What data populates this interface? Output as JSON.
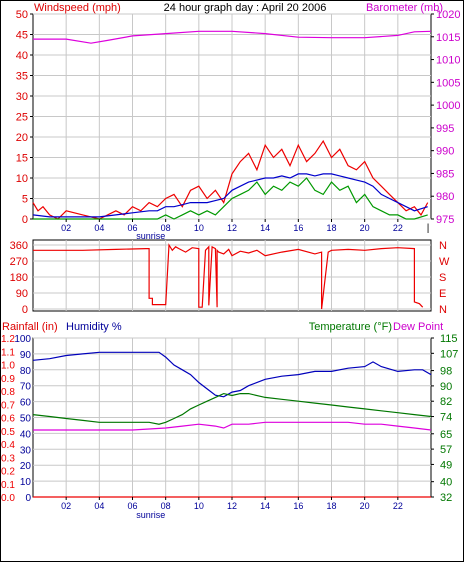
{
  "header": {
    "title": "24 hour graph day : April 20 2006",
    "left_label": "Windspeed (mph)",
    "right_label": "Barometer (mb)"
  },
  "x_axis": {
    "tick_labels": [
      "02",
      "04",
      "06",
      "08",
      "10",
      "12",
      "14",
      "16",
      "18",
      "20",
      "22"
    ],
    "hours": [
      2,
      4,
      6,
      8,
      10,
      12,
      14,
      16,
      18,
      20,
      22
    ],
    "sunrise_label": "sunrise",
    "sunrise_hour": 7.1,
    "end_marker": "|"
  },
  "colors": {
    "wind_axis": "#dd0000",
    "baro_axis": "#cc00cc",
    "humidity_axis": "#000099",
    "temp_axis": "#007700",
    "wind_speed": "#ee0000",
    "wind_avg": "#0000cc",
    "wind_green": "#009900",
    "barometer": "#dd00dd",
    "direction": "#ee0000",
    "humidity": "#0000bb",
    "temperature": "#007700",
    "dew_point": "#dd00dd",
    "rainfall": "#ee0000",
    "grid": "#c8c8c8"
  },
  "chart_data": [
    {
      "type": "line",
      "panel": "wind",
      "ylabel_left": "Windspeed (mph)",
      "ylabel_right": "Barometer (mb)",
      "xlim": [
        0,
        24
      ],
      "ylim_left": [
        0,
        50
      ],
      "ylim_right": [
        975,
        1020
      ],
      "left_ticks": [
        0,
        5,
        10,
        15,
        20,
        25,
        30,
        35,
        40,
        45,
        50
      ],
      "right_ticks": [
        975,
        980,
        985,
        990,
        995,
        1000,
        1005,
        1010,
        1015,
        1020
      ],
      "series": [
        {
          "axis": "left",
          "color": "#ee0000",
          "x": [
            0,
            0.3,
            0.6,
            1,
            1.5,
            2,
            3,
            4,
            4.5,
            5,
            5.5,
            6,
            6.5,
            7,
            7.5,
            8,
            8.5,
            9,
            9.5,
            10,
            10.5,
            11,
            11.5,
            12,
            12.5,
            13,
            13.5,
            14,
            14.5,
            15,
            15.5,
            16,
            16.5,
            17,
            17.5,
            18,
            18.5,
            19,
            19.5,
            20,
            20.5,
            21,
            21.5,
            22,
            22.5,
            23,
            23.4,
            23.8
          ],
          "y": [
            4,
            2,
            3,
            1,
            0,
            2,
            1,
            0,
            1,
            2,
            1,
            3,
            2,
            4,
            3,
            5,
            6,
            3,
            7,
            8,
            5,
            7,
            4,
            11,
            14,
            16,
            12,
            18,
            15,
            17,
            13,
            18,
            14,
            16,
            19,
            15,
            17,
            13,
            12,
            14,
            10,
            8,
            6,
            4,
            2,
            3,
            1,
            4
          ]
        },
        {
          "axis": "left",
          "color": "#0000cc",
          "x": [
            0,
            1,
            2,
            3,
            4,
            5,
            6,
            7,
            7.5,
            8,
            8.5,
            9,
            9.5,
            10,
            10.5,
            11,
            11.5,
            12,
            12.5,
            13,
            13.5,
            14,
            14.5,
            15,
            15.5,
            16,
            16.5,
            17,
            17.5,
            18,
            18.5,
            19,
            19.5,
            20,
            20.5,
            21,
            21.5,
            22,
            22.5,
            23,
            23.8
          ],
          "y": [
            1,
            0.5,
            0.5,
            0.5,
            0.5,
            1,
            1.5,
            2,
            2,
            3,
            3,
            3.5,
            4,
            4,
            4,
            4.5,
            5,
            7,
            8,
            9,
            9.5,
            10,
            10,
            10.5,
            10,
            11,
            11,
            10.5,
            11,
            11,
            10.5,
            10,
            9.5,
            9,
            8,
            6,
            5,
            4,
            3,
            2,
            3
          ]
        },
        {
          "axis": "left",
          "color": "#009900",
          "x": [
            0,
            1,
            2,
            3,
            4,
            5,
            6,
            7,
            7.5,
            8,
            8.5,
            9,
            9.5,
            10,
            10.5,
            11,
            11.5,
            12,
            12.5,
            13,
            13.5,
            14,
            14.5,
            15,
            15.5,
            16,
            16.5,
            17,
            17.5,
            18,
            18.5,
            19,
            19.5,
            20,
            20.5,
            21,
            21.5,
            22,
            22.5,
            23,
            23.8
          ],
          "y": [
            0,
            0,
            0,
            0,
            0,
            0,
            0,
            0,
            0,
            1,
            0,
            1,
            2,
            1,
            2,
            1,
            3,
            5,
            6,
            7,
            9,
            6,
            8,
            7,
            9,
            8,
            10,
            7,
            6,
            9,
            7,
            8,
            4,
            6,
            3,
            2,
            1,
            1,
            0,
            0,
            1
          ]
        },
        {
          "axis": "right",
          "color": "#dd00dd",
          "x": [
            0,
            2,
            3.5,
            4.5,
            6,
            8,
            10,
            12,
            14,
            16,
            18,
            20,
            22,
            23,
            24
          ],
          "y": [
            1014.5,
            1014.5,
            1013.6,
            1014.2,
            1015.2,
            1015.7,
            1016.2,
            1016.2,
            1015.7,
            1014.9,
            1014.8,
            1014.8,
            1015.3,
            1016.1,
            1016.2
          ]
        }
      ]
    },
    {
      "type": "line",
      "panel": "direction",
      "xlim": [
        0,
        24
      ],
      "ylim_left": [
        0,
        360
      ],
      "left_ticks": [
        0,
        90,
        180,
        270,
        360
      ],
      "right_tick_labels": [
        "N",
        "W",
        "S",
        "E",
        "N"
      ],
      "series": [
        {
          "axis": "left",
          "color": "#ee0000",
          "x": [
            0,
            3,
            5,
            6.8,
            7,
            7,
            7.2,
            7.2,
            8,
            8.2,
            8.4,
            8.6,
            8.8,
            9.2,
            9.6,
            10,
            10,
            10.2,
            10.4,
            10.6,
            10.6,
            10.8,
            11,
            11.1,
            11.1,
            11.2,
            11.5,
            11.8,
            12,
            12.5,
            13,
            13.5,
            14,
            15,
            16,
            17,
            17.4,
            17.4,
            17.8,
            18,
            19,
            20,
            21,
            22,
            23,
            23,
            23.3,
            23.5
          ],
          "y": [
            330,
            330,
            335,
            340,
            340,
            60,
            60,
            25,
            25,
            360,
            330,
            350,
            340,
            320,
            345,
            340,
            10,
            10,
            330,
            350,
            20,
            350,
            340,
            10,
            330,
            320,
            310,
            335,
            300,
            325,
            315,
            330,
            300,
            320,
            335,
            310,
            320,
            0,
            320,
            330,
            335,
            330,
            340,
            345,
            340,
            40,
            30,
            10
          ]
        }
      ]
    },
    {
      "type": "line",
      "panel": "climate",
      "xlim": [
        0,
        24
      ],
      "ylabel_rain": "Rainfall (in)",
      "ylabel_humidity": "Humidity %",
      "ylabel_temp": "Temperature (°F)",
      "ylabel_dew": "Dew Point",
      "ylim_humidity": [
        0,
        100
      ],
      "ylim_temp": [
        32,
        115
      ],
      "ylim_rain": [
        0,
        1.2
      ],
      "humidity_ticks": [
        0,
        10,
        20,
        30,
        40,
        50,
        60,
        70,
        80,
        90,
        100
      ],
      "rain_ticks": [
        "0.0",
        "0.1",
        "0.2",
        "0.3",
        "0.4",
        "0.5",
        "0.6",
        "0.7",
        "0.8",
        "0.9",
        "1.0",
        "1.1",
        "1.2"
      ],
      "temp_ticks": [
        32,
        40,
        49,
        57,
        65,
        74,
        82,
        90,
        98,
        107,
        115
      ],
      "series": [
        {
          "name": "Humidity",
          "color": "#0000bb",
          "x": [
            0,
            1,
            2,
            3,
            4,
            5,
            6,
            7,
            7.6,
            8,
            8.5,
            9,
            9.5,
            10,
            10.5,
            11,
            11.5,
            12,
            12.5,
            13,
            14,
            15,
            16,
            17,
            18,
            19,
            20,
            20.5,
            21,
            22,
            23,
            23.5,
            24
          ],
          "y": [
            86,
            87,
            89,
            90,
            91,
            91,
            91,
            91,
            91,
            88,
            83,
            80,
            77,
            72,
            68,
            64,
            63,
            66,
            67,
            70,
            74,
            76,
            77,
            79,
            79,
            81,
            82,
            85,
            82,
            79,
            80,
            80,
            77
          ]
        },
        {
          "name": "Temperature",
          "color": "#007700",
          "x": [
            0,
            1,
            2,
            3,
            4,
            5,
            6,
            7,
            7.6,
            8,
            8.5,
            9,
            9.5,
            10,
            10.5,
            11,
            11.5,
            12,
            12.5,
            13,
            14,
            15,
            16,
            17,
            18,
            19,
            20,
            21,
            22,
            23,
            24
          ],
          "y": [
            75,
            74,
            73,
            72,
            71,
            71,
            71,
            71,
            70,
            71,
            73,
            75,
            78,
            80,
            82,
            84,
            86,
            85,
            86,
            86,
            84,
            83,
            82,
            81,
            80,
            79,
            78,
            77,
            76,
            75,
            74
          ]
        },
        {
          "name": "Dew Point",
          "color": "#dd00dd",
          "x": [
            0,
            2,
            4,
            6,
            8,
            9,
            10,
            11,
            11.5,
            12,
            13,
            14,
            15,
            16,
            17,
            18,
            19,
            20,
            21,
            22,
            23,
            24
          ],
          "y": [
            67,
            67,
            67,
            67,
            68,
            69,
            70,
            69,
            68,
            70,
            70,
            71,
            71,
            71,
            71,
            71,
            71,
            70,
            70,
            69,
            68,
            67
          ]
        },
        {
          "name": "Rainfall",
          "color": "#ee0000",
          "x": [
            0,
            24
          ],
          "y": [
            0,
            0
          ]
        }
      ]
    }
  ]
}
